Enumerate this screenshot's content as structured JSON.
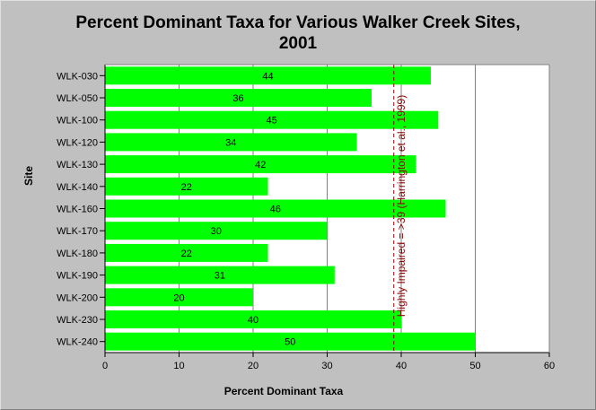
{
  "chart_data": {
    "type": "bar",
    "orientation": "horizontal",
    "title": "Percent Dominant Taxa for Various Walker Creek Sites,\n2001",
    "xlabel": "Percent Dominant Taxa",
    "ylabel": "Site",
    "categories": [
      "WLK-030",
      "WLK-050",
      "WLK-100",
      "WLK-120",
      "WLK-130",
      "WLK-140",
      "WLK-160",
      "WLK-170",
      "WLK-180",
      "WLK-190",
      "WLK-200",
      "WLK-230",
      "WLK-240"
    ],
    "values": [
      44,
      36,
      45,
      34,
      42,
      22,
      46,
      30,
      22,
      31,
      20,
      40,
      50
    ],
    "xlim": [
      0,
      60
    ],
    "xticks": [
      0,
      10,
      20,
      30,
      40,
      50,
      60
    ],
    "grid": "vertical",
    "reference_line": {
      "value": 39,
      "label": "Highly Impaired = >39 (Harrington et al., 1999)"
    },
    "colors": {
      "bar": "#00ff00",
      "background": "#c0c0c0",
      "plot_background": "#ffffff",
      "grid": "#808080",
      "reference_line": "#8b0000"
    }
  }
}
